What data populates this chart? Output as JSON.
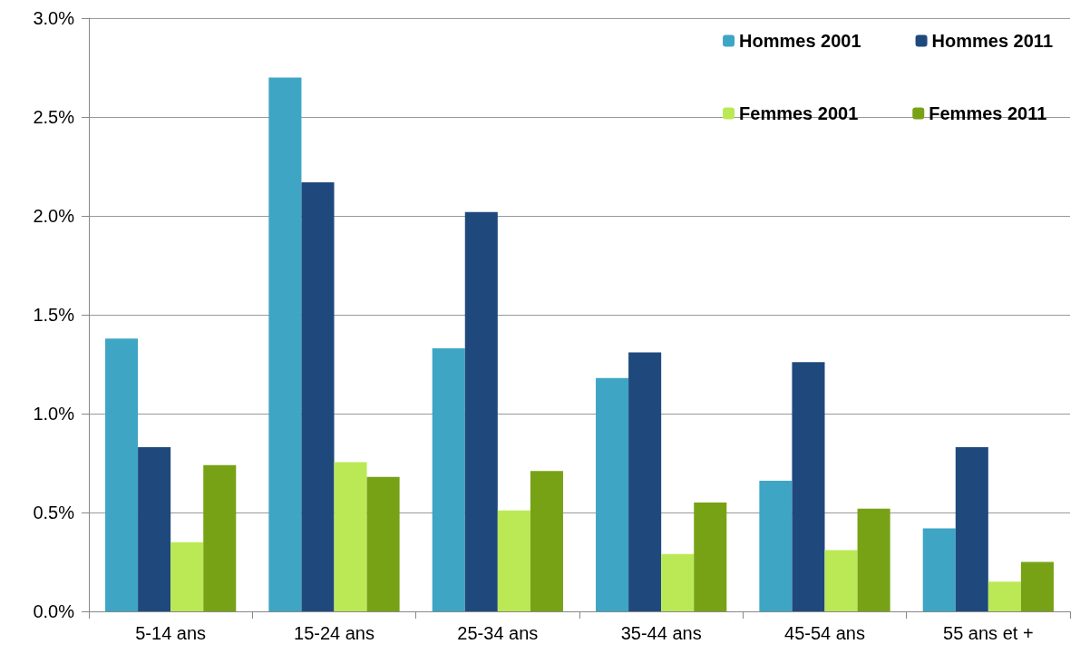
{
  "chart_data": {
    "type": "bar",
    "categories": [
      "5-14 ans",
      "15-24 ans",
      "25-34 ans",
      "35-44 ans",
      "45-54 ans",
      "55 ans et +"
    ],
    "series": [
      {
        "name": "Hommes 2001",
        "color": "#3ea6c4",
        "values": [
          1.38,
          2.7,
          1.33,
          1.18,
          0.66,
          0.42
        ]
      },
      {
        "name": "Hommes 2011",
        "color": "#1f497d",
        "values": [
          0.83,
          2.17,
          2.02,
          1.31,
          1.26,
          0.83
        ]
      },
      {
        "name": "Femmes 2001",
        "color": "#bbe955",
        "values": [
          0.35,
          0.755,
          0.51,
          0.29,
          0.31,
          0.15
        ]
      },
      {
        "name": "Femmes 2011",
        "color": "#78a215",
        "values": [
          0.74,
          0.68,
          0.71,
          0.55,
          0.52,
          0.25
        ]
      }
    ],
    "ylim": [
      0,
      3
    ],
    "yticks": [
      {
        "value": 0,
        "label": "0.0%"
      },
      {
        "value": 0.5,
        "label": "0.5%"
      },
      {
        "value": 1,
        "label": "1.0%"
      },
      {
        "value": 1.5,
        "label": "1.5%"
      },
      {
        "value": 2,
        "label": "2.0%"
      },
      {
        "value": 2.5,
        "label": "2.5%"
      },
      {
        "value": 3,
        "label": "3.0%"
      }
    ],
    "grid": "y",
    "legend": "top right"
  }
}
